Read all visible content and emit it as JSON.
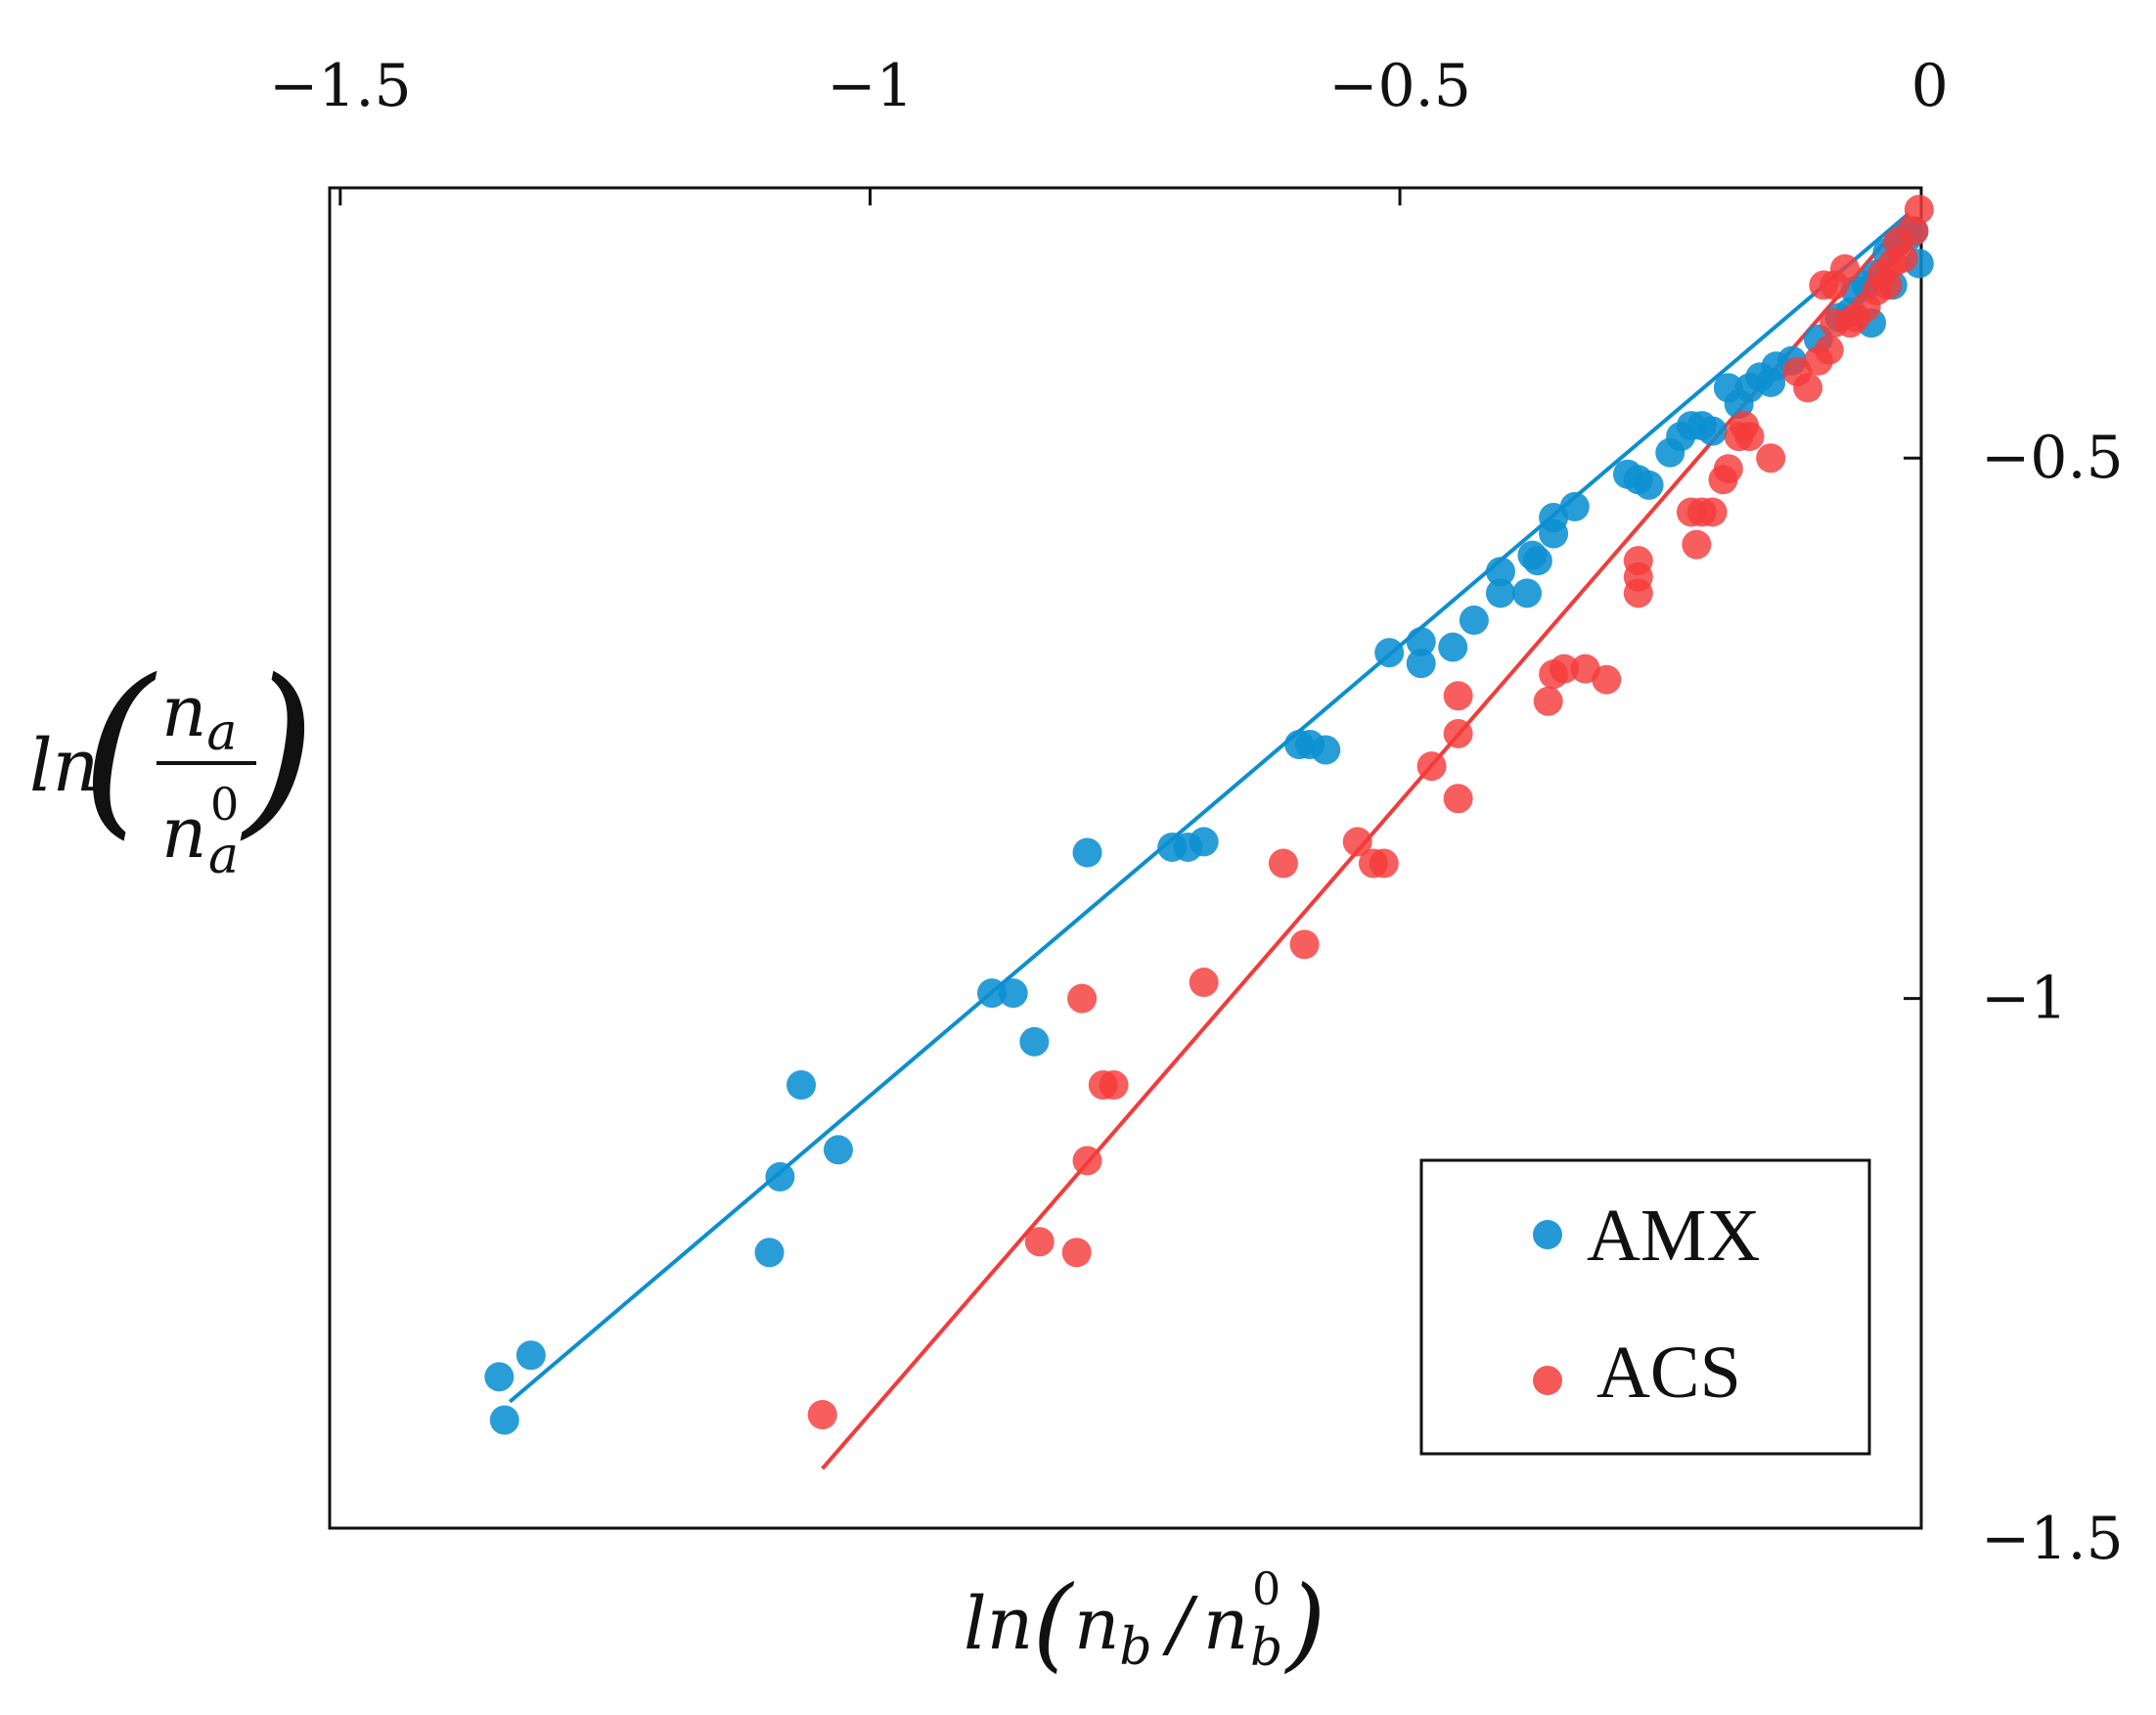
{
  "chart_data": {
    "type": "scatter",
    "xlabel": "ln(n_b/n_b^0)",
    "xlabel_parts": {
      "prefix": "ln",
      "num": "n",
      "num_sub": "b",
      "den": "n",
      "den_sub": "b",
      "den_sup": "0"
    },
    "ylabel": "ln(n_a/n_a^0)",
    "ylabel_parts": {
      "prefix": "ln",
      "num": "n",
      "num_sub": "a",
      "den": "n",
      "den_sub": "a",
      "den_sup": "0"
    },
    "xlim": [
      -1.51,
      -0.008
    ],
    "ylim": [
      -1.49,
      -0.25
    ],
    "x_ticks": [
      {
        "value": -1.5,
        "label": "−1.5"
      },
      {
        "value": -1.0,
        "label": "−1"
      },
      {
        "value": -0.5,
        "label": "−0.5"
      },
      {
        "value": 0.0,
        "label": "0"
      }
    ],
    "y_ticks": [
      {
        "value": -0.5,
        "label": "−0.5"
      },
      {
        "value": -1.0,
        "label": "−1"
      },
      {
        "value": -1.5,
        "label": "−1.5"
      }
    ],
    "x_axis_position": "top",
    "y_axis_position": "right",
    "grid": false,
    "legend_position": "bottom-right",
    "series": [
      {
        "name": "AMX",
        "color": "#0b8fd2",
        "fit": {
          "x": [
            -1.34,
            -0.02
          ],
          "y": [
            -1.373,
            -0.274
          ]
        },
        "points": [
          [
            -1.35,
            -1.35
          ],
          [
            -1.32,
            -1.33
          ],
          [
            -1.345,
            -1.39
          ],
          [
            -1.085,
            -1.165
          ],
          [
            -1.065,
            -1.08
          ],
          [
            -1.095,
            -1.235
          ],
          [
            -1.03,
            -1.14
          ],
          [
            -0.885,
            -0.995
          ],
          [
            -0.865,
            -0.995
          ],
          [
            -0.845,
            -1.04
          ],
          [
            -0.795,
            -0.865
          ],
          [
            -0.715,
            -0.86
          ],
          [
            -0.7,
            -0.86
          ],
          [
            -0.685,
            -0.855
          ],
          [
            -0.595,
            -0.765
          ],
          [
            -0.585,
            -0.765
          ],
          [
            -0.57,
            -0.77
          ],
          [
            -0.51,
            -0.68
          ],
          [
            -0.48,
            -0.67
          ],
          [
            -0.48,
            -0.69
          ],
          [
            -0.45,
            -0.675
          ],
          [
            -0.43,
            -0.65
          ],
          [
            -0.405,
            -0.625
          ],
          [
            -0.405,
            -0.605
          ],
          [
            -0.38,
            -0.625
          ],
          [
            -0.375,
            -0.59
          ],
          [
            -0.37,
            -0.595
          ],
          [
            -0.355,
            -0.57
          ],
          [
            -0.355,
            -0.555
          ],
          [
            -0.335,
            -0.545
          ],
          [
            -0.285,
            -0.515
          ],
          [
            -0.275,
            -0.52
          ],
          [
            -0.265,
            -0.525
          ],
          [
            -0.245,
            -0.495
          ],
          [
            -0.235,
            -0.48
          ],
          [
            -0.225,
            -0.47
          ],
          [
            -0.215,
            -0.47
          ],
          [
            -0.205,
            -0.475
          ],
          [
            -0.19,
            -0.435
          ],
          [
            -0.18,
            -0.45
          ],
          [
            -0.17,
            -0.435
          ],
          [
            -0.16,
            -0.425
          ],
          [
            -0.15,
            -0.43
          ],
          [
            -0.145,
            -0.415
          ],
          [
            -0.13,
            -0.41
          ],
          [
            -0.105,
            -0.39
          ],
          [
            -0.085,
            -0.37
          ],
          [
            -0.075,
            -0.365
          ],
          [
            -0.07,
            -0.345
          ],
          [
            -0.06,
            -0.34
          ],
          [
            -0.055,
            -0.375
          ],
          [
            -0.05,
            -0.33
          ],
          [
            -0.04,
            -0.31
          ],
          [
            -0.035,
            -0.34
          ],
          [
            -0.03,
            -0.3
          ],
          [
            -0.02,
            -0.295
          ],
          [
            -0.015,
            -0.29
          ],
          [
            -0.01,
            -0.32
          ]
        ]
      },
      {
        "name": "ACS",
        "color": "#f53a3a",
        "fit": {
          "x": [
            -1.045,
            -0.02
          ],
          "y": [
            -1.435,
            -0.275
          ]
        },
        "points": [
          [
            -1.045,
            -1.385
          ],
          [
            -0.84,
            -1.225
          ],
          [
            -0.805,
            -1.235
          ],
          [
            -0.795,
            -1.15
          ],
          [
            -0.78,
            -1.08
          ],
          [
            -0.77,
            -1.08
          ],
          [
            -0.8,
            -1.0
          ],
          [
            -0.685,
            -0.985
          ],
          [
            -0.59,
            -0.95
          ],
          [
            -0.61,
            -0.875
          ],
          [
            -0.54,
            -0.855
          ],
          [
            -0.525,
            -0.875
          ],
          [
            -0.515,
            -0.875
          ],
          [
            -0.47,
            -0.785
          ],
          [
            -0.445,
            -0.755
          ],
          [
            -0.445,
            -0.815
          ],
          [
            -0.445,
            -0.72
          ],
          [
            -0.36,
            -0.725
          ],
          [
            -0.355,
            -0.7
          ],
          [
            -0.345,
            -0.695
          ],
          [
            -0.325,
            -0.695
          ],
          [
            -0.305,
            -0.705
          ],
          [
            -0.275,
            -0.595
          ],
          [
            -0.275,
            -0.625
          ],
          [
            -0.275,
            -0.61
          ],
          [
            -0.225,
            -0.55
          ],
          [
            -0.215,
            -0.55
          ],
          [
            -0.205,
            -0.55
          ],
          [
            -0.22,
            -0.58
          ],
          [
            -0.195,
            -0.52
          ],
          [
            -0.19,
            -0.51
          ],
          [
            -0.18,
            -0.48
          ],
          [
            -0.175,
            -0.47
          ],
          [
            -0.17,
            -0.48
          ],
          [
            -0.15,
            -0.5
          ],
          [
            -0.125,
            -0.42
          ],
          [
            -0.115,
            -0.435
          ],
          [
            -0.105,
            -0.41
          ],
          [
            -0.095,
            -0.4
          ],
          [
            -0.09,
            -0.375
          ],
          [
            -0.075,
            -0.375
          ],
          [
            -0.07,
            -0.37
          ],
          [
            -0.06,
            -0.36
          ],
          [
            -0.05,
            -0.345
          ],
          [
            -0.045,
            -0.33
          ],
          [
            -0.04,
            -0.34
          ],
          [
            -0.035,
            -0.32
          ],
          [
            -0.03,
            -0.3
          ],
          [
            -0.025,
            -0.315
          ],
          [
            -0.015,
            -0.29
          ],
          [
            -0.01,
            -0.27
          ],
          [
            -0.08,
            -0.325
          ],
          [
            -0.1,
            -0.34
          ],
          [
            -0.09,
            -0.34
          ]
        ]
      }
    ]
  }
}
